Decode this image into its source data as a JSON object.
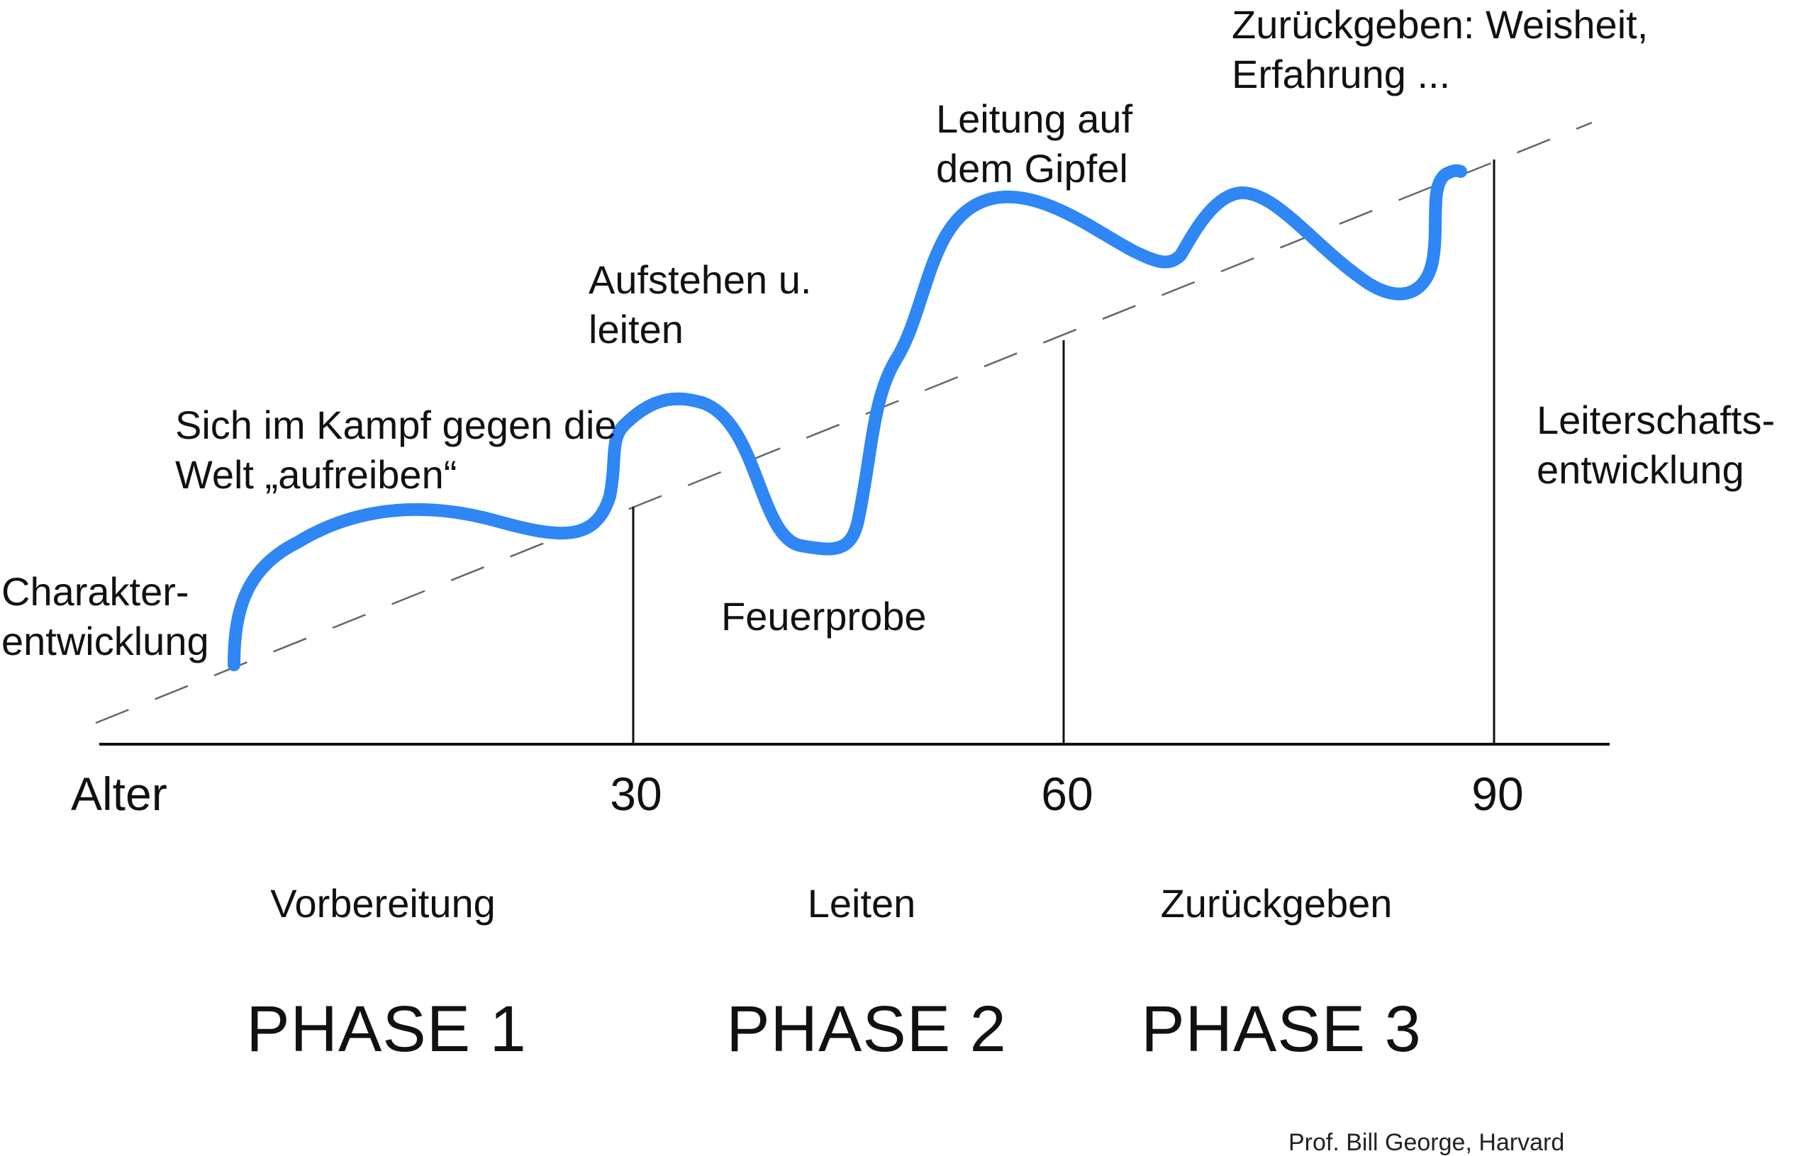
{
  "annotations": {
    "character": [
      "Charakter-",
      "entwicklung"
    ],
    "struggle": [
      "Sich im Kampf gegen die",
      "Welt „aufreiben“"
    ],
    "rise": [
      "Aufstehen u.",
      "leiten"
    ],
    "crucible": "Feuerprobe",
    "summit": [
      "Leitung auf",
      "dem Gipfel"
    ],
    "giveback": [
      "Zurückgeben: Weisheit,",
      "Erfahrung ..."
    ],
    "leadership": [
      "Leiterschafts-",
      "entwicklung"
    ]
  },
  "axis": {
    "label": "Alter",
    "ticks": [
      "30",
      "60",
      "90"
    ]
  },
  "phases": [
    {
      "name": "Vorbereitung",
      "title": "PHASE 1"
    },
    {
      "name": "Leiten",
      "title": "PHASE 2"
    },
    {
      "name": "Zurückgeben",
      "title": "PHASE 3"
    }
  ],
  "credit": "Prof. Bill George, Harvard",
  "colors": {
    "curve": "#2f86f5",
    "lines": "#111111",
    "trend": "#666666"
  }
}
